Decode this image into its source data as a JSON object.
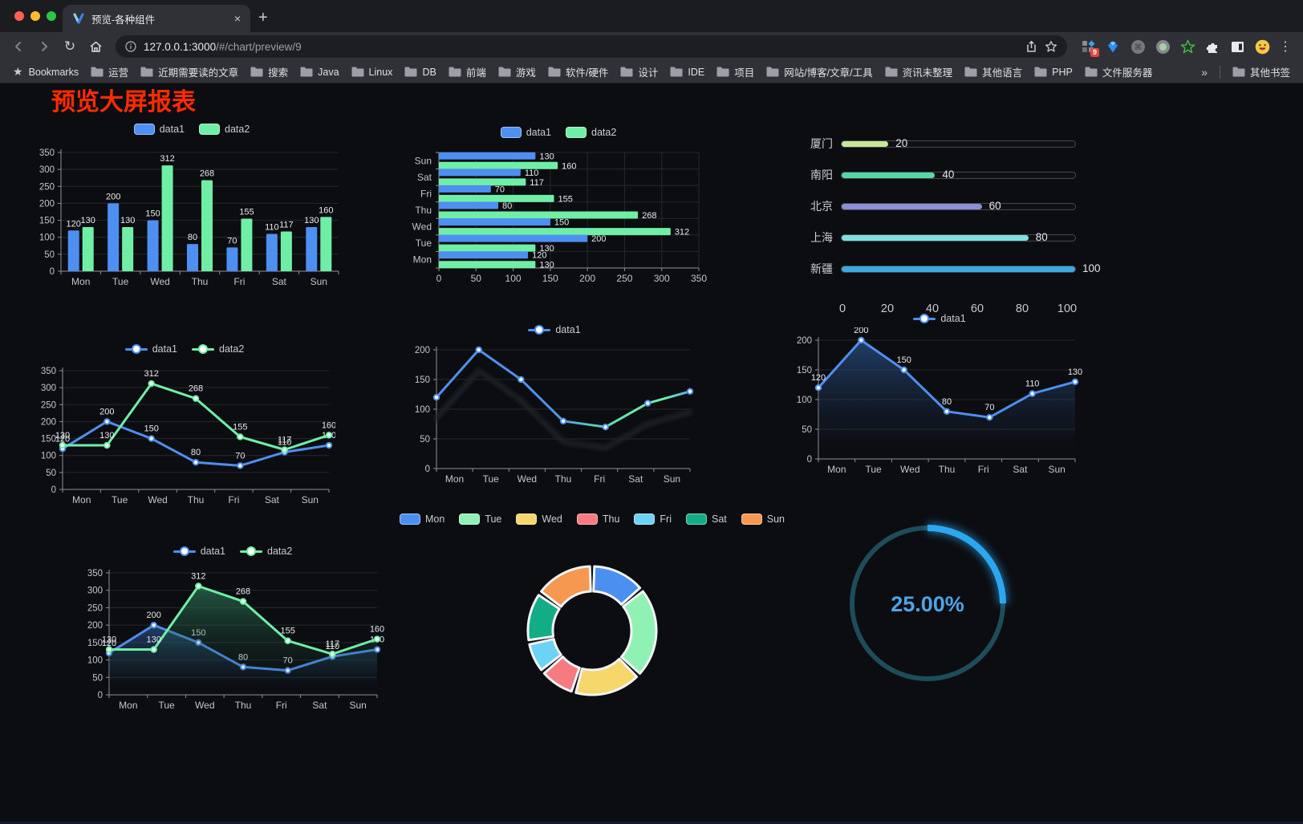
{
  "browser": {
    "tab_title": "预览-各种组件",
    "tab_close": "×",
    "new_tab": "+",
    "url_host": "127.0.0.1:3000",
    "url_path": "/#/chart/preview/9",
    "bookmarks_label": "Bookmarks",
    "bookmark_folders": [
      "运营",
      "近期需要读的文章",
      "搜索",
      "Java",
      "Linux",
      "DB",
      "前端",
      "游戏",
      "软件/硬件",
      "设计",
      "IDE",
      "项目",
      "网站/博客/文章/工具",
      "资讯未整理",
      "其他语言",
      "PHP",
      "文件服务器"
    ],
    "bookmarks_overflow": "»",
    "other_bookmarks": "其他书签",
    "extension_badge": "9"
  },
  "page": {
    "title": "预览大屏报表",
    "title_color": "#FF2B00",
    "background": "#0C0D11"
  },
  "chart_data": [
    {
      "id": "bar-grouped",
      "type": "bar",
      "categories": [
        "Mon",
        "Tue",
        "Wed",
        "Thu",
        "Fri",
        "Sat",
        "Sun"
      ],
      "series": [
        {
          "name": "data1",
          "color": "#4E8FF2",
          "values": [
            120,
            200,
            150,
            80,
            70,
            110,
            130
          ]
        },
        {
          "name": "data2",
          "color": "#6FEFA6",
          "values": [
            130,
            130,
            312,
            268,
            155,
            117,
            160
          ]
        }
      ],
      "ylim": [
        0,
        350
      ],
      "yticks": [
        0,
        50,
        100,
        150,
        200,
        250,
        300,
        350
      ],
      "legend_position": "top",
      "grid": true,
      "show_labels": true
    },
    {
      "id": "hbar-grouped",
      "type": "bar-horizontal",
      "categories": [
        "Mon",
        "Tue",
        "Wed",
        "Thu",
        "Fri",
        "Sat",
        "Sun"
      ],
      "series": [
        {
          "name": "data1",
          "color": "#4E8FF2",
          "values": [
            120,
            200,
            150,
            80,
            70,
            110,
            130
          ]
        },
        {
          "name": "data2",
          "color": "#6FEFA6",
          "values": [
            130,
            130,
            312,
            268,
            155,
            117,
            160
          ]
        }
      ],
      "xlim": [
        0,
        350
      ],
      "xticks": [
        0,
        50,
        100,
        150,
        200,
        250,
        300,
        350
      ],
      "legend_position": "top",
      "grid": true,
      "show_labels": true
    },
    {
      "id": "progress",
      "type": "bar-horizontal",
      "variant": "progress",
      "categories": [
        "厦门",
        "南阳",
        "北京",
        "上海",
        "新疆"
      ],
      "values": [
        20,
        40,
        60,
        80,
        100
      ],
      "colors": [
        "#C5E896",
        "#55D9A4",
        "#8C8ED8",
        "#7FE1DF",
        "#3BAAE0"
      ],
      "xlim": [
        0,
        100
      ],
      "xticks": [
        0,
        20,
        40,
        60,
        80,
        100
      ],
      "show_labels": true
    },
    {
      "id": "line-two",
      "type": "line",
      "categories": [
        "Mon",
        "Tue",
        "Wed",
        "Thu",
        "Fri",
        "Sat",
        "Sun"
      ],
      "series": [
        {
          "name": "data1",
          "color": "#4E8FF2",
          "values": [
            120,
            200,
            150,
            80,
            70,
            110,
            130
          ]
        },
        {
          "name": "data2",
          "color": "#6FEFA6",
          "values": [
            130,
            130,
            312,
            268,
            155,
            117,
            160
          ]
        }
      ],
      "ylim": [
        0,
        350
      ],
      "yticks": [
        0,
        50,
        100,
        150,
        200,
        250,
        300,
        350
      ],
      "legend_position": "top",
      "grid": true,
      "show_labels": true
    },
    {
      "id": "line-gradient",
      "type": "line",
      "variant": "gradient-stroke",
      "categories": [
        "Mon",
        "Tue",
        "Wed",
        "Thu",
        "Fri",
        "Sat",
        "Sun"
      ],
      "series": [
        {
          "name": "data1",
          "color": "#4E8FF2",
          "gradient": [
            "#4E8FF2",
            "#4E8FF2",
            "#55CBBF",
            "#66E9A8",
            "#6FEFA6",
            "#57ADE8"
          ],
          "values": [
            120,
            200,
            150,
            80,
            70,
            110,
            130
          ]
        }
      ],
      "ylim": [
        0,
        200
      ],
      "yticks": [
        0,
        50,
        100,
        150,
        200
      ],
      "legend_position": "top",
      "grid": true,
      "show_labels": false
    },
    {
      "id": "area-one",
      "type": "area",
      "categories": [
        "Mon",
        "Tue",
        "Wed",
        "Thu",
        "Fri",
        "Sat",
        "Sun"
      ],
      "series": [
        {
          "name": "data1",
          "color": "#4E8FF2",
          "values": [
            120,
            200,
            150,
            80,
            70,
            110,
            130
          ]
        }
      ],
      "ylim": [
        0,
        200
      ],
      "yticks": [
        0,
        50,
        100,
        150,
        200
      ],
      "legend_position": "top",
      "grid": true,
      "show_labels": true
    },
    {
      "id": "area-two",
      "type": "area",
      "categories": [
        "Mon",
        "Tue",
        "Wed",
        "Thu",
        "Fri",
        "Sat",
        "Sun"
      ],
      "series": [
        {
          "name": "data1",
          "color": "#4E8FF2",
          "values": [
            120,
            200,
            150,
            80,
            70,
            110,
            130
          ]
        },
        {
          "name": "data2",
          "color": "#6FEFA6",
          "values": [
            130,
            130,
            312,
            268,
            155,
            117,
            160
          ]
        }
      ],
      "ylim": [
        0,
        350
      ],
      "yticks": [
        0,
        50,
        100,
        150,
        200,
        250,
        300,
        350
      ],
      "legend_position": "top",
      "grid": true,
      "show_labels": true
    },
    {
      "id": "donut",
      "type": "pie",
      "categories": [
        "Mon",
        "Tue",
        "Wed",
        "Thu",
        "Fri",
        "Sat",
        "Sun"
      ],
      "values": [
        120,
        200,
        150,
        80,
        70,
        110,
        130
      ],
      "colors": [
        "#4B90F0",
        "#8FF2B4",
        "#F5D76C",
        "#F57B80",
        "#6CD3F5",
        "#12AD85",
        "#F6984F"
      ],
      "legend_position": "top"
    },
    {
      "id": "gauge",
      "type": "gauge",
      "percent": 25,
      "value_label": "25.00%",
      "arc_color": "#2BA7F0",
      "track_color": "#1D4C5A",
      "text_color": "#4EA4E6"
    }
  ]
}
